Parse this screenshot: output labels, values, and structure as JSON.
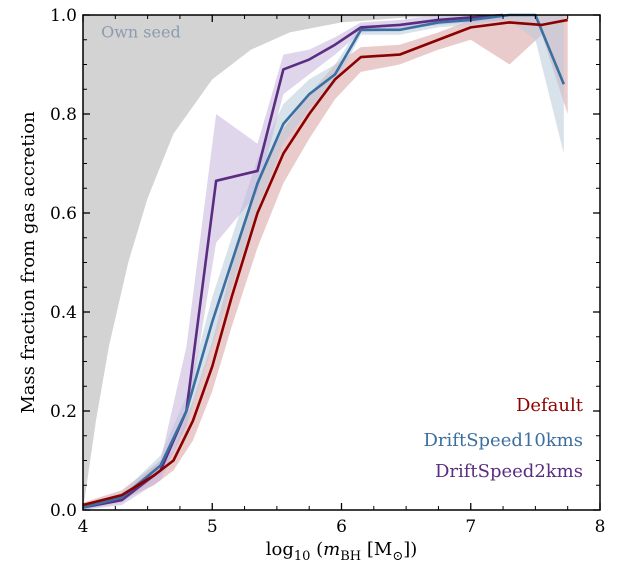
{
  "chart_data": {
    "type": "line",
    "xlabel_prefix": "log",
    "xlabel_sub": "10",
    "xlabel_open": " (",
    "xlabel_var": "m",
    "xlabel_var_sub": "BH",
    "xlabel_unit": " [M",
    "xlabel_unit_sub": "⊙",
    "xlabel_close": "])",
    "ylabel": "Mass fraction from gas accretion",
    "xlim": [
      4,
      8
    ],
    "ylim": [
      0,
      1
    ],
    "xticks": [
      4,
      5,
      6,
      7,
      8
    ],
    "xtick_labels": [
      "4",
      "5",
      "6",
      "7",
      "8"
    ],
    "yticks": [
      0,
      0.2,
      0.4,
      0.6,
      0.8,
      1.0
    ],
    "ytick_labels": [
      "0.0",
      "0.2",
      "0.4",
      "0.6",
      "0.8",
      "1.0"
    ],
    "legend_position": "bottom-right",
    "annotation": {
      "text": "Own seed",
      "color": "#8c9bb0",
      "fill_color": "#d3d3d3",
      "curve_y_at_x": [
        [
          4.0,
          0.0
        ],
        [
          4.05,
          0.09
        ],
        [
          4.1,
          0.18
        ],
        [
          4.2,
          0.33
        ],
        [
          4.35,
          0.5
        ],
        [
          4.5,
          0.63
        ],
        [
          4.7,
          0.76
        ],
        [
          5.0,
          0.87
        ],
        [
          5.3,
          0.93
        ],
        [
          5.6,
          0.965
        ],
        [
          6.0,
          0.985
        ],
        [
          6.5,
          0.995
        ],
        [
          7.0,
          0.998
        ],
        [
          7.75,
          1.0
        ]
      ]
    },
    "series": [
      {
        "name": "Default",
        "color": "#8b0000",
        "band_color": "#d9a0a3",
        "x": [
          4.0,
          4.3,
          4.55,
          4.7,
          4.85,
          5.0,
          5.15,
          5.35,
          5.55,
          5.75,
          5.95,
          6.15,
          6.45,
          6.75,
          7.0,
          7.3,
          7.55,
          7.75
        ],
        "y": [
          0.01,
          0.03,
          0.07,
          0.1,
          0.18,
          0.29,
          0.43,
          0.6,
          0.72,
          0.8,
          0.87,
          0.915,
          0.92,
          0.95,
          0.975,
          0.985,
          0.98,
          0.99
        ],
        "lo": [
          0.005,
          0.02,
          0.05,
          0.08,
          0.14,
          0.24,
          0.37,
          0.53,
          0.66,
          0.75,
          0.83,
          0.885,
          0.9,
          0.93,
          0.95,
          0.9,
          0.96,
          0.8
        ],
        "hi": [
          0.015,
          0.04,
          0.09,
          0.12,
          0.22,
          0.34,
          0.49,
          0.66,
          0.77,
          0.84,
          0.9,
          0.935,
          0.94,
          0.965,
          0.99,
          1.0,
          1.0,
          1.0
        ]
      },
      {
        "name": "DriftSpeed10kms",
        "color": "#3b6fa0",
        "band_color": "#b8cadb",
        "x": [
          4.0,
          4.3,
          4.6,
          4.8,
          5.0,
          5.2,
          5.35,
          5.55,
          5.75,
          5.95,
          6.15,
          6.45,
          6.75,
          7.0,
          7.3,
          7.5,
          7.72
        ],
        "y": [
          0.005,
          0.025,
          0.09,
          0.2,
          0.38,
          0.54,
          0.66,
          0.78,
          0.84,
          0.88,
          0.97,
          0.97,
          0.985,
          0.99,
          1.0,
          1.0,
          0.86
        ],
        "lo": [
          0.0,
          0.015,
          0.07,
          0.17,
          0.33,
          0.49,
          0.61,
          0.74,
          0.81,
          0.86,
          0.96,
          0.96,
          0.975,
          0.98,
          0.99,
          0.95,
          0.72
        ],
        "hi": [
          0.01,
          0.035,
          0.11,
          0.23,
          0.43,
          0.59,
          0.71,
          0.82,
          0.87,
          0.9,
          0.98,
          0.98,
          0.995,
          1.0,
          1.0,
          1.0,
          1.0
        ]
      },
      {
        "name": "DriftSpeed2kms",
        "color": "#5a2d82",
        "band_color": "#c6b4da",
        "x": [
          4.0,
          4.3,
          4.6,
          4.8,
          5.03,
          5.35,
          5.55,
          5.75,
          5.95,
          6.15,
          6.45,
          6.75,
          7.0,
          7.25
        ],
        "y": [
          0.005,
          0.02,
          0.08,
          0.2,
          0.665,
          0.685,
          0.89,
          0.91,
          0.94,
          0.975,
          0.98,
          0.99,
          0.995,
          1.0
        ],
        "lo": [
          0.0,
          0.01,
          0.06,
          0.17,
          0.54,
          0.64,
          0.84,
          0.88,
          0.92,
          0.965,
          0.97,
          0.98,
          0.985,
          0.99
        ],
        "hi": [
          0.01,
          0.03,
          0.1,
          0.33,
          0.8,
          0.74,
          0.92,
          0.93,
          0.955,
          0.985,
          0.99,
          1.0,
          1.0,
          1.0
        ]
      }
    ]
  }
}
